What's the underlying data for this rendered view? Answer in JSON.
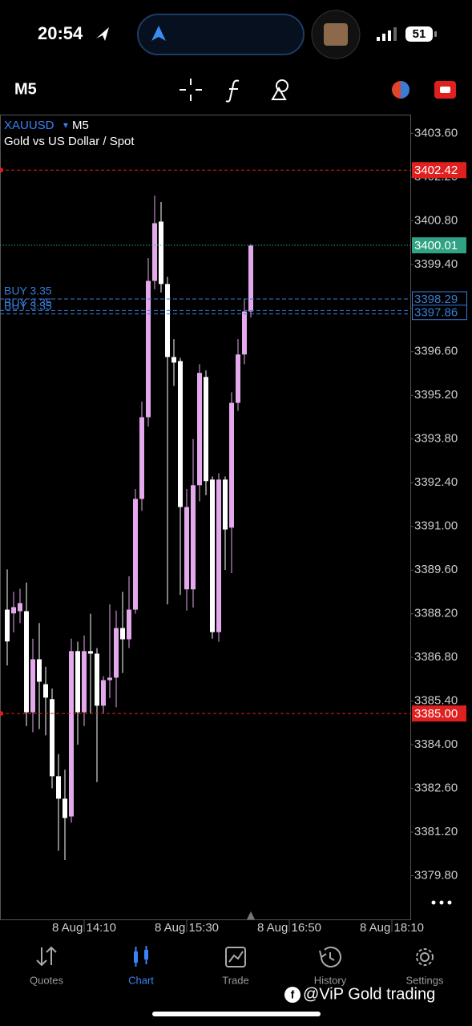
{
  "status_bar": {
    "time": "20:54",
    "battery": "51"
  },
  "toolbar": {
    "timeframe": "M5"
  },
  "chart_data": {
    "type": "candlestick",
    "symbol": "XAUUSD",
    "timeframe": "M5",
    "description": "Gold vs US Dollar / Spot",
    "categories": [
      null,
      null,
      null,
      null,
      null,
      null,
      null,
      null,
      null,
      null,
      null,
      null,
      "8 Aug 14:10",
      null,
      null,
      null,
      null,
      null,
      null,
      null,
      null,
      null,
      null,
      null,
      null,
      null,
      null,
      null,
      "8 Aug 15:30",
      null,
      null,
      null,
      null,
      null,
      null,
      null,
      null,
      null,
      null,
      null,
      null,
      null,
      null,
      null,
      "8 Aug 16:50",
      null,
      null,
      null,
      null,
      null,
      null,
      null,
      null,
      null,
      null,
      null,
      null,
      null,
      null,
      null,
      "8 Aug 18:10",
      null,
      null,
      null
    ],
    "open": [
      3388.33,
      3388.21,
      3388.28,
      3388.28,
      3385.04,
      3386.74,
      3385.94,
      3385.46,
      3382.99,
      3382.27,
      3381.7,
      3387.0,
      3385.04,
      3387.0,
      3386.92,
      3385.25,
      3386.07,
      3386.15,
      3387.74,
      3387.38,
      3388.33,
      3391.88,
      3394.5,
      3398.87,
      3400.77,
      3398.77,
      3396.43,
      3396.3,
      3388.98,
      3388.98,
      3392.32,
      3395.79,
      3392.5,
      3387.61,
      3392.5,
      3390.96,
      3394.96,
      3396.51,
      3397.89,
      null,
      null,
      null,
      null,
      null,
      null,
      null,
      null,
      null,
      null,
      null,
      null,
      null,
      null,
      null,
      null,
      null,
      null,
      null,
      null,
      null,
      null,
      null,
      null,
      null
    ],
    "high": [
      3389.62,
      3388.9,
      3389.0,
      3389.2,
      3387.4,
      3387.9,
      3386.5,
      3385.8,
      3383.7,
      3383.2,
      3387.4,
      3387.3,
      3387.5,
      3388.2,
      3387.1,
      3386.2,
      3388.5,
      3388.3,
      3388.9,
      3389.4,
      3392.2,
      3395.0,
      3399.6,
      3401.6,
      3401.4,
      3399.0,
      3397.0,
      3396.4,
      3392.2,
      3393.8,
      3396.2,
      3396.0,
      3392.6,
      3392.7,
      3392.6,
      3395.3,
      3397.0,
      3398.3,
      3400.05,
      null,
      null,
      null,
      null,
      null,
      null,
      null,
      null,
      null,
      null,
      null,
      null,
      null,
      null,
      null,
      null,
      null,
      null,
      null,
      null,
      null,
      null,
      null,
      null,
      null
    ],
    "low": [
      3386.54,
      3387.6,
      3387.9,
      3384.6,
      3384.4,
      3384.5,
      3384.3,
      3382.6,
      3380.6,
      3380.3,
      3381.5,
      3384.0,
      3384.6,
      3385.0,
      3382.8,
      3385.0,
      3385.5,
      3385.2,
      3386.3,
      3387.1,
      3388.2,
      3391.5,
      3394.2,
      3398.6,
      3398.5,
      3388.5,
      3395.5,
      3388.8,
      3388.3,
      3388.4,
      3391.8,
      3392.0,
      3387.4,
      3387.3,
      3389.6,
      3389.5,
      3394.7,
      3396.2,
      3397.7,
      null,
      null,
      null,
      null,
      null,
      null,
      null,
      null,
      null,
      null,
      null,
      null,
      null,
      null,
      null,
      null,
      null,
      null,
      null,
      null,
      null,
      null,
      null,
      null,
      null
    ],
    "close": [
      3387.31,
      3388.41,
      3388.54,
      3385.04,
      3386.74,
      3386.02,
      3385.51,
      3382.99,
      3382.27,
      3381.65,
      3387.0,
      3385.04,
      3387.0,
      3386.92,
      3385.25,
      3386.07,
      3386.15,
      3387.74,
      3387.38,
      3388.33,
      3391.88,
      3394.5,
      3398.87,
      3400.72,
      3398.77,
      3396.43,
      3396.25,
      3391.62,
      3391.62,
      3392.32,
      3395.92,
      3392.45,
      3387.61,
      3392.5,
      3390.9,
      3394.96,
      3396.51,
      3397.89,
      3400.0,
      null,
      null,
      null,
      null,
      null,
      null,
      null,
      null,
      null,
      null,
      null,
      null,
      null,
      null,
      null,
      null,
      null,
      null,
      null,
      null,
      null,
      null,
      null,
      null,
      null
    ],
    "up_color": "#e4a8ec",
    "down_color": "#ffffff",
    "ylim": [
      3378.4,
      3404.2
    ],
    "yticks": [
      {
        "value": 3403.6,
        "label": "3403.60"
      },
      {
        "value": 3402.2,
        "label": "3402.20"
      },
      {
        "value": 3400.8,
        "label": "3400.80"
      },
      {
        "value": 3399.4,
        "label": "3399.40"
      },
      {
        "value": 3398,
        "label": "3398.00"
      },
      {
        "value": 3396.6,
        "label": "3396.60"
      },
      {
        "value": 3395.2,
        "label": "3395.20"
      },
      {
        "value": 3393.8,
        "label": "3393.80"
      },
      {
        "value": 3392.4,
        "label": "3392.40"
      },
      {
        "value": 3391,
        "label": "3391.00"
      },
      {
        "value": 3389.6,
        "label": "3389.60"
      },
      {
        "value": 3388.2,
        "label": "3388.20"
      },
      {
        "value": 3386.8,
        "label": "3386.80"
      },
      {
        "value": 3385.4,
        "label": "3385.40"
      },
      {
        "value": 3384,
        "label": "3384.00"
      },
      {
        "value": 3382.6,
        "label": "3382.60"
      },
      {
        "value": 3381.2,
        "label": "3381.20"
      },
      {
        "value": 3379.8,
        "label": "3379.80"
      }
    ],
    "grid": false,
    "levels": [
      {
        "value": 3402.42,
        "color": "#e0201e",
        "style": "dashed"
      },
      {
        "value": 3400.01,
        "color": "#2fa383",
        "style": "dotted"
      },
      {
        "value": {
          "value": 3385,
          "label": "3385.00"
        },
        "color": "#e0201e",
        "style": "dashed"
      }
    ],
    "positions": [
      {
        "label": "BUY 3.35",
        "value": 3398.29
      },
      {
        "label": "BUY 3.35",
        "value": 3397.92
      },
      {
        "label": "BUY 3.35",
        "value": 3397.81
      }
    ],
    "position_tags": [
      3398.29,
      3397.86
    ],
    "position_color": "#3a7bd5"
  },
  "nav": {
    "tabs": [
      "Quotes",
      "Chart",
      "Trade",
      "History",
      "Settings"
    ],
    "active": 1
  },
  "watermark": "@ViP Gold trading"
}
